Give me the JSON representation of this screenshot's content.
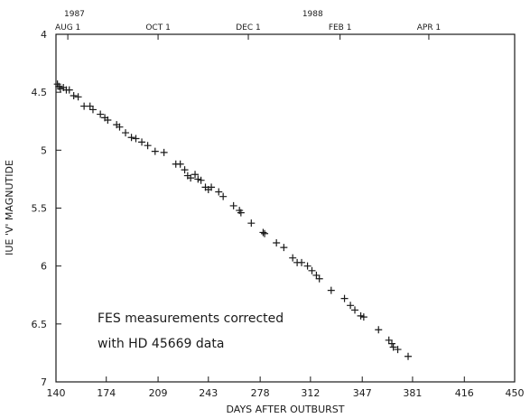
{
  "chart_data": {
    "type": "scatter",
    "xlabel": "DAYS AFTER OUTBURST",
    "ylabel": "IUE 'V' MAGNUTIDE",
    "xlim": [
      140,
      450
    ],
    "ylim": [
      4,
      7
    ],
    "y_inverted": true,
    "x_ticks": [
      140,
      174,
      209,
      243,
      278,
      312,
      347,
      381,
      416,
      450
    ],
    "y_ticks": [
      4,
      4.5,
      5,
      5.5,
      6,
      6.5,
      7
    ],
    "y_tick_labels": [
      "4",
      "4.5",
      "5",
      "5.5",
      "6",
      "6.5",
      "7"
    ],
    "top_axis": {
      "years": [
        {
          "label": "1987",
          "x": 140
        },
        {
          "label": "1988",
          "x": 301
        }
      ],
      "months": [
        {
          "label": "AUG 1",
          "x": 148
        },
        {
          "label": "OCT 1",
          "x": 209
        },
        {
          "label": "DEC 1",
          "x": 270
        },
        {
          "label": "FEB 1",
          "x": 332
        },
        {
          "label": "APR 1",
          "x": 392
        }
      ]
    },
    "annotations": [
      "FES measurements corrected",
      "with HD 45669 data"
    ],
    "marker": "plus",
    "grid": false,
    "points": [
      [
        141,
        4.43
      ],
      [
        142,
        4.45
      ],
      [
        143,
        4.47
      ],
      [
        145,
        4.46
      ],
      [
        147,
        4.48
      ],
      [
        149,
        4.48
      ],
      [
        152,
        4.53
      ],
      [
        155,
        4.54
      ],
      [
        159,
        4.62
      ],
      [
        163,
        4.62
      ],
      [
        165,
        4.65
      ],
      [
        170,
        4.69
      ],
      [
        173,
        4.72
      ],
      [
        175,
        4.74
      ],
      [
        181,
        4.78
      ],
      [
        183,
        4.8
      ],
      [
        187,
        4.85
      ],
      [
        191,
        4.89
      ],
      [
        194,
        4.9
      ],
      [
        198,
        4.93
      ],
      [
        202,
        4.96
      ],
      [
        207,
        5.01
      ],
      [
        213,
        5.02
      ],
      [
        221,
        5.12
      ],
      [
        224,
        5.12
      ],
      [
        227,
        5.17
      ],
      [
        229,
        5.22
      ],
      [
        231,
        5.24
      ],
      [
        234,
        5.21
      ],
      [
        236,
        5.25
      ],
      [
        238,
        5.26
      ],
      [
        241,
        5.32
      ],
      [
        243,
        5.34
      ],
      [
        245,
        5.32
      ],
      [
        250,
        5.36
      ],
      [
        253,
        5.4
      ],
      [
        260,
        5.48
      ],
      [
        264,
        5.52
      ],
      [
        265,
        5.54
      ],
      [
        272,
        5.63
      ],
      [
        280,
        5.71
      ],
      [
        281,
        5.72
      ],
      [
        289,
        5.8
      ],
      [
        294,
        5.84
      ],
      [
        300,
        5.93
      ],
      [
        303,
        5.97
      ],
      [
        306,
        5.97
      ],
      [
        310,
        6.0
      ],
      [
        313,
        6.04
      ],
      [
        316,
        6.08
      ],
      [
        318,
        6.11
      ],
      [
        326,
        6.21
      ],
      [
        335,
        6.28
      ],
      [
        339,
        6.34
      ],
      [
        342,
        6.38
      ],
      [
        346,
        6.43
      ],
      [
        348,
        6.44
      ],
      [
        358,
        6.55
      ],
      [
        365,
        6.64
      ],
      [
        367,
        6.67
      ],
      [
        368,
        6.7
      ],
      [
        371,
        6.72
      ],
      [
        378,
        6.78
      ]
    ]
  }
}
